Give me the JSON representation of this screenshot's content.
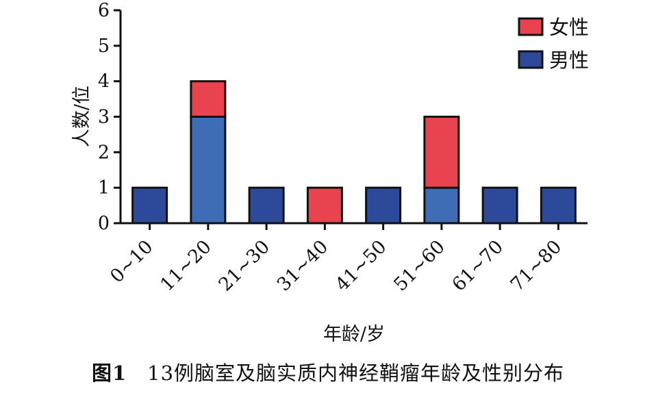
{
  "chart_data": {
    "type": "bar",
    "stacked": true,
    "categories": [
      "0~10",
      "11~20",
      "21~30",
      "31~40",
      "41~50",
      "51~60",
      "61~70",
      "71~80"
    ],
    "series": [
      {
        "name": "男性",
        "values": [
          1,
          3,
          1,
          0,
          1,
          1,
          1,
          1
        ],
        "color": "#3f6db5"
      },
      {
        "name": "女性",
        "values": [
          0,
          1,
          0,
          1,
          0,
          2,
          0,
          0
        ],
        "color": "#e8434f"
      }
    ],
    "solid_male_color": "#2d4a9a",
    "xlabel": "年龄/岁",
    "ylabel": "人数/位",
    "ylim": [
      0,
      6
    ],
    "yticks": [
      "0",
      "1",
      "2",
      "3",
      "4",
      "5",
      "6"
    ],
    "legend": {
      "position": "top-right",
      "items": [
        "女性",
        "男性"
      ]
    }
  },
  "caption": {
    "label": "图1",
    "text": "13例脑室及脑实质内神经鞘瘤年龄及性别分布"
  }
}
